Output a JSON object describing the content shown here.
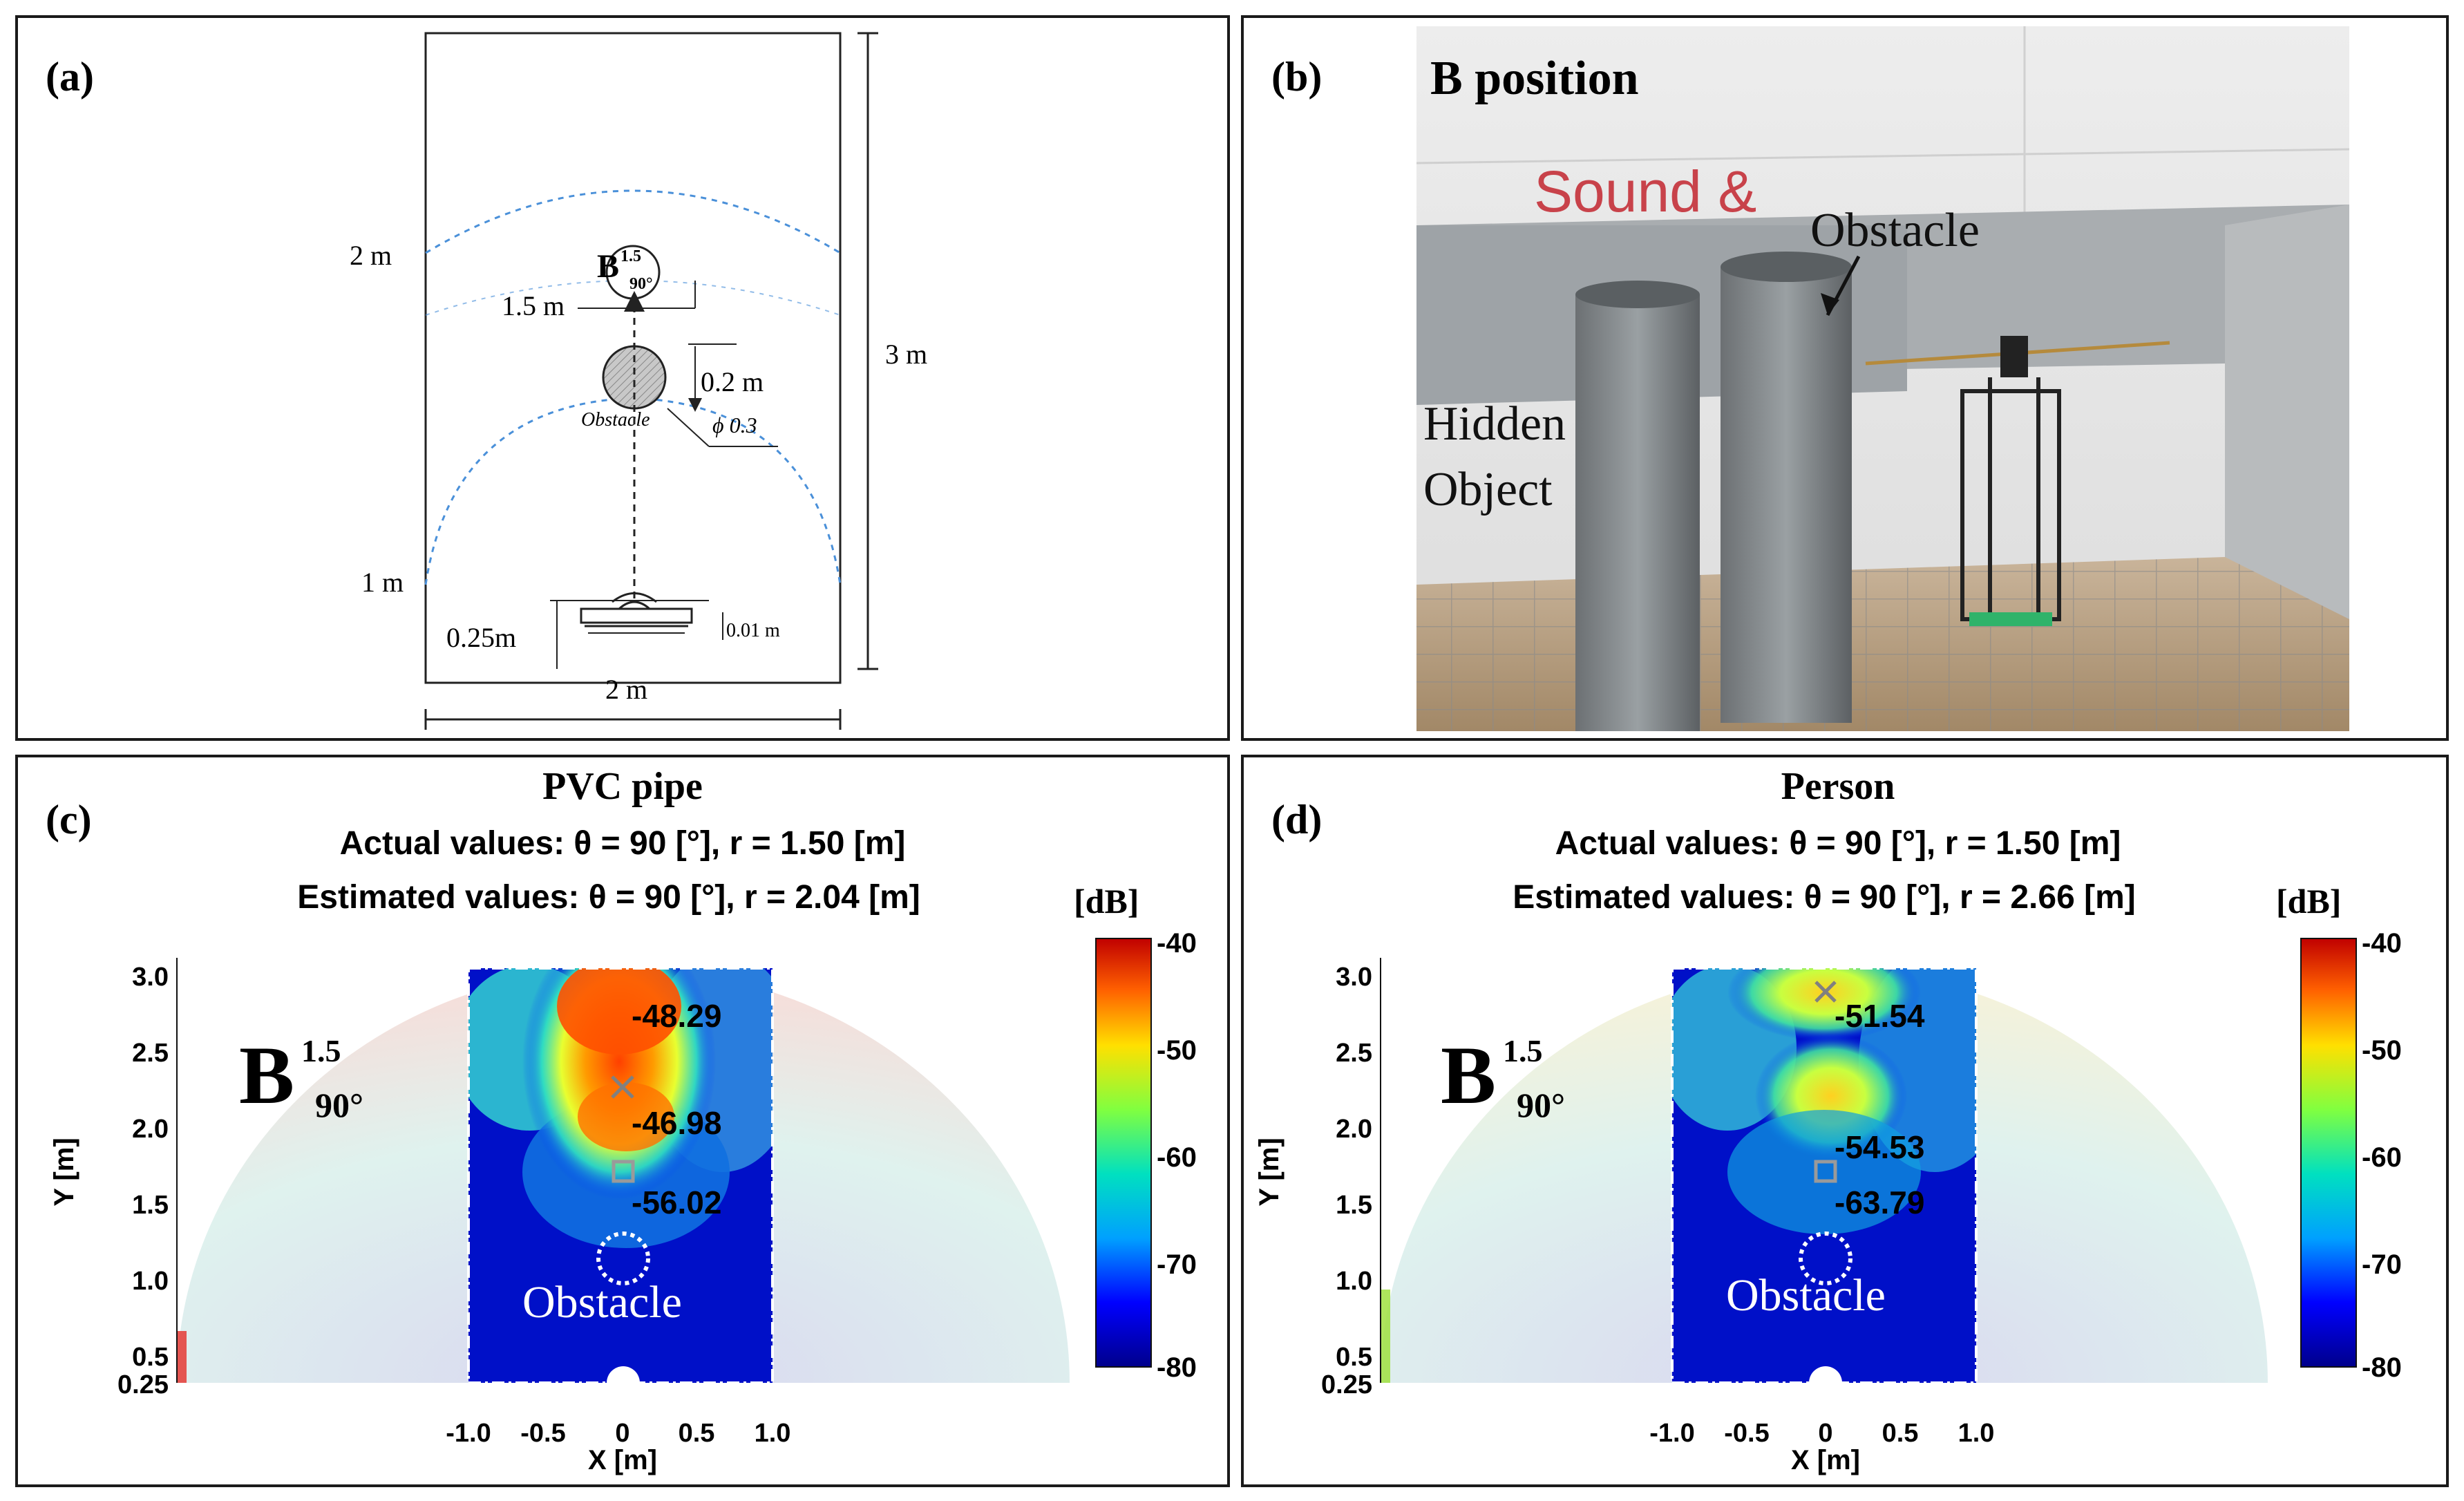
{
  "panel_a": {
    "label": "(a)",
    "width_label": "2 m",
    "height_label": "3 m",
    "arc_2m_label": "2 m",
    "arc_1m_label": "1 m",
    "offset_label": "0.25m",
    "spacing_label": "0.01 m",
    "target_distance_label": "1.5 m",
    "gap_label": "0.2 m",
    "obstacle_label": "Obstacle",
    "diameter_label": "ϕ 0.3",
    "position_letter": "B",
    "position_sup": "1.5",
    "position_sub": "90°"
  },
  "panel_b": {
    "label": "(b)",
    "title": "B position",
    "wall_text": "Sound &",
    "obstacle_label": "Obstacle",
    "hidden_line1": "Hidden",
    "hidden_line2": "Object"
  },
  "panel_c": {
    "label": "(c)",
    "title": "PVC pipe",
    "actual": "Actual values: θ = 90 [°], r = 1.50 [m]",
    "estimated": "Estimated values: θ = 90 [°], r = 2.04 [m]",
    "unit": "[dB]",
    "annotations": [
      "-48.29",
      "-46.98",
      "-56.02"
    ],
    "obstacle_text": "Obstacle",
    "b_letter": "B",
    "b_sup": "1.5",
    "b_sub": "90°"
  },
  "panel_d": {
    "label": "(d)",
    "title": "Person",
    "actual": "Actual values: θ = 90 [°], r = 1.50 [m]",
    "estimated": "Estimated values: θ = 90 [°], r = 2.66 [m]",
    "unit": "[dB]",
    "annotations": [
      "-51.54",
      "-54.53",
      "-63.79"
    ],
    "obstacle_text": "Obstacle",
    "b_letter": "B",
    "b_sup": "1.5",
    "b_sub": "90°"
  },
  "axes": {
    "ylabel": "Y [m]",
    "xlabel": "X [m]",
    "yticks": [
      "3.0",
      "2.5",
      "2.0",
      "1.5",
      "1.0",
      "0.5",
      "0.25"
    ],
    "xticks": [
      "-1.0",
      "-0.5",
      "0",
      "0.5",
      "1.0"
    ],
    "cbar_ticks": [
      "-40",
      "-50",
      "-60",
      "-70",
      "-80"
    ]
  },
  "chart_data": [
    {
      "type": "heatmap",
      "title": "PVC pipe",
      "xlabel": "X [m]",
      "ylabel": "Y [m]",
      "xlim": [
        -1.0,
        1.0
      ],
      "ylim": [
        0.25,
        3.0
      ],
      "colorbar": {
        "label": "[dB]",
        "range": [
          -80,
          -40
        ]
      },
      "actual": {
        "theta_deg": 90,
        "r_m": 1.5
      },
      "estimated": {
        "theta_deg": 90,
        "r_m": 2.04
      },
      "annotations": [
        -48.29,
        -46.98,
        -56.02
      ]
    },
    {
      "type": "heatmap",
      "title": "Person",
      "xlabel": "X [m]",
      "ylabel": "Y [m]",
      "xlim": [
        -1.0,
        1.0
      ],
      "ylim": [
        0.25,
        3.0
      ],
      "colorbar": {
        "label": "[dB]",
        "range": [
          -80,
          -40
        ]
      },
      "actual": {
        "theta_deg": 90,
        "r_m": 1.5
      },
      "estimated": {
        "theta_deg": 90,
        "r_m": 2.66
      },
      "annotations": [
        -51.54,
        -54.53,
        -63.79
      ]
    }
  ]
}
